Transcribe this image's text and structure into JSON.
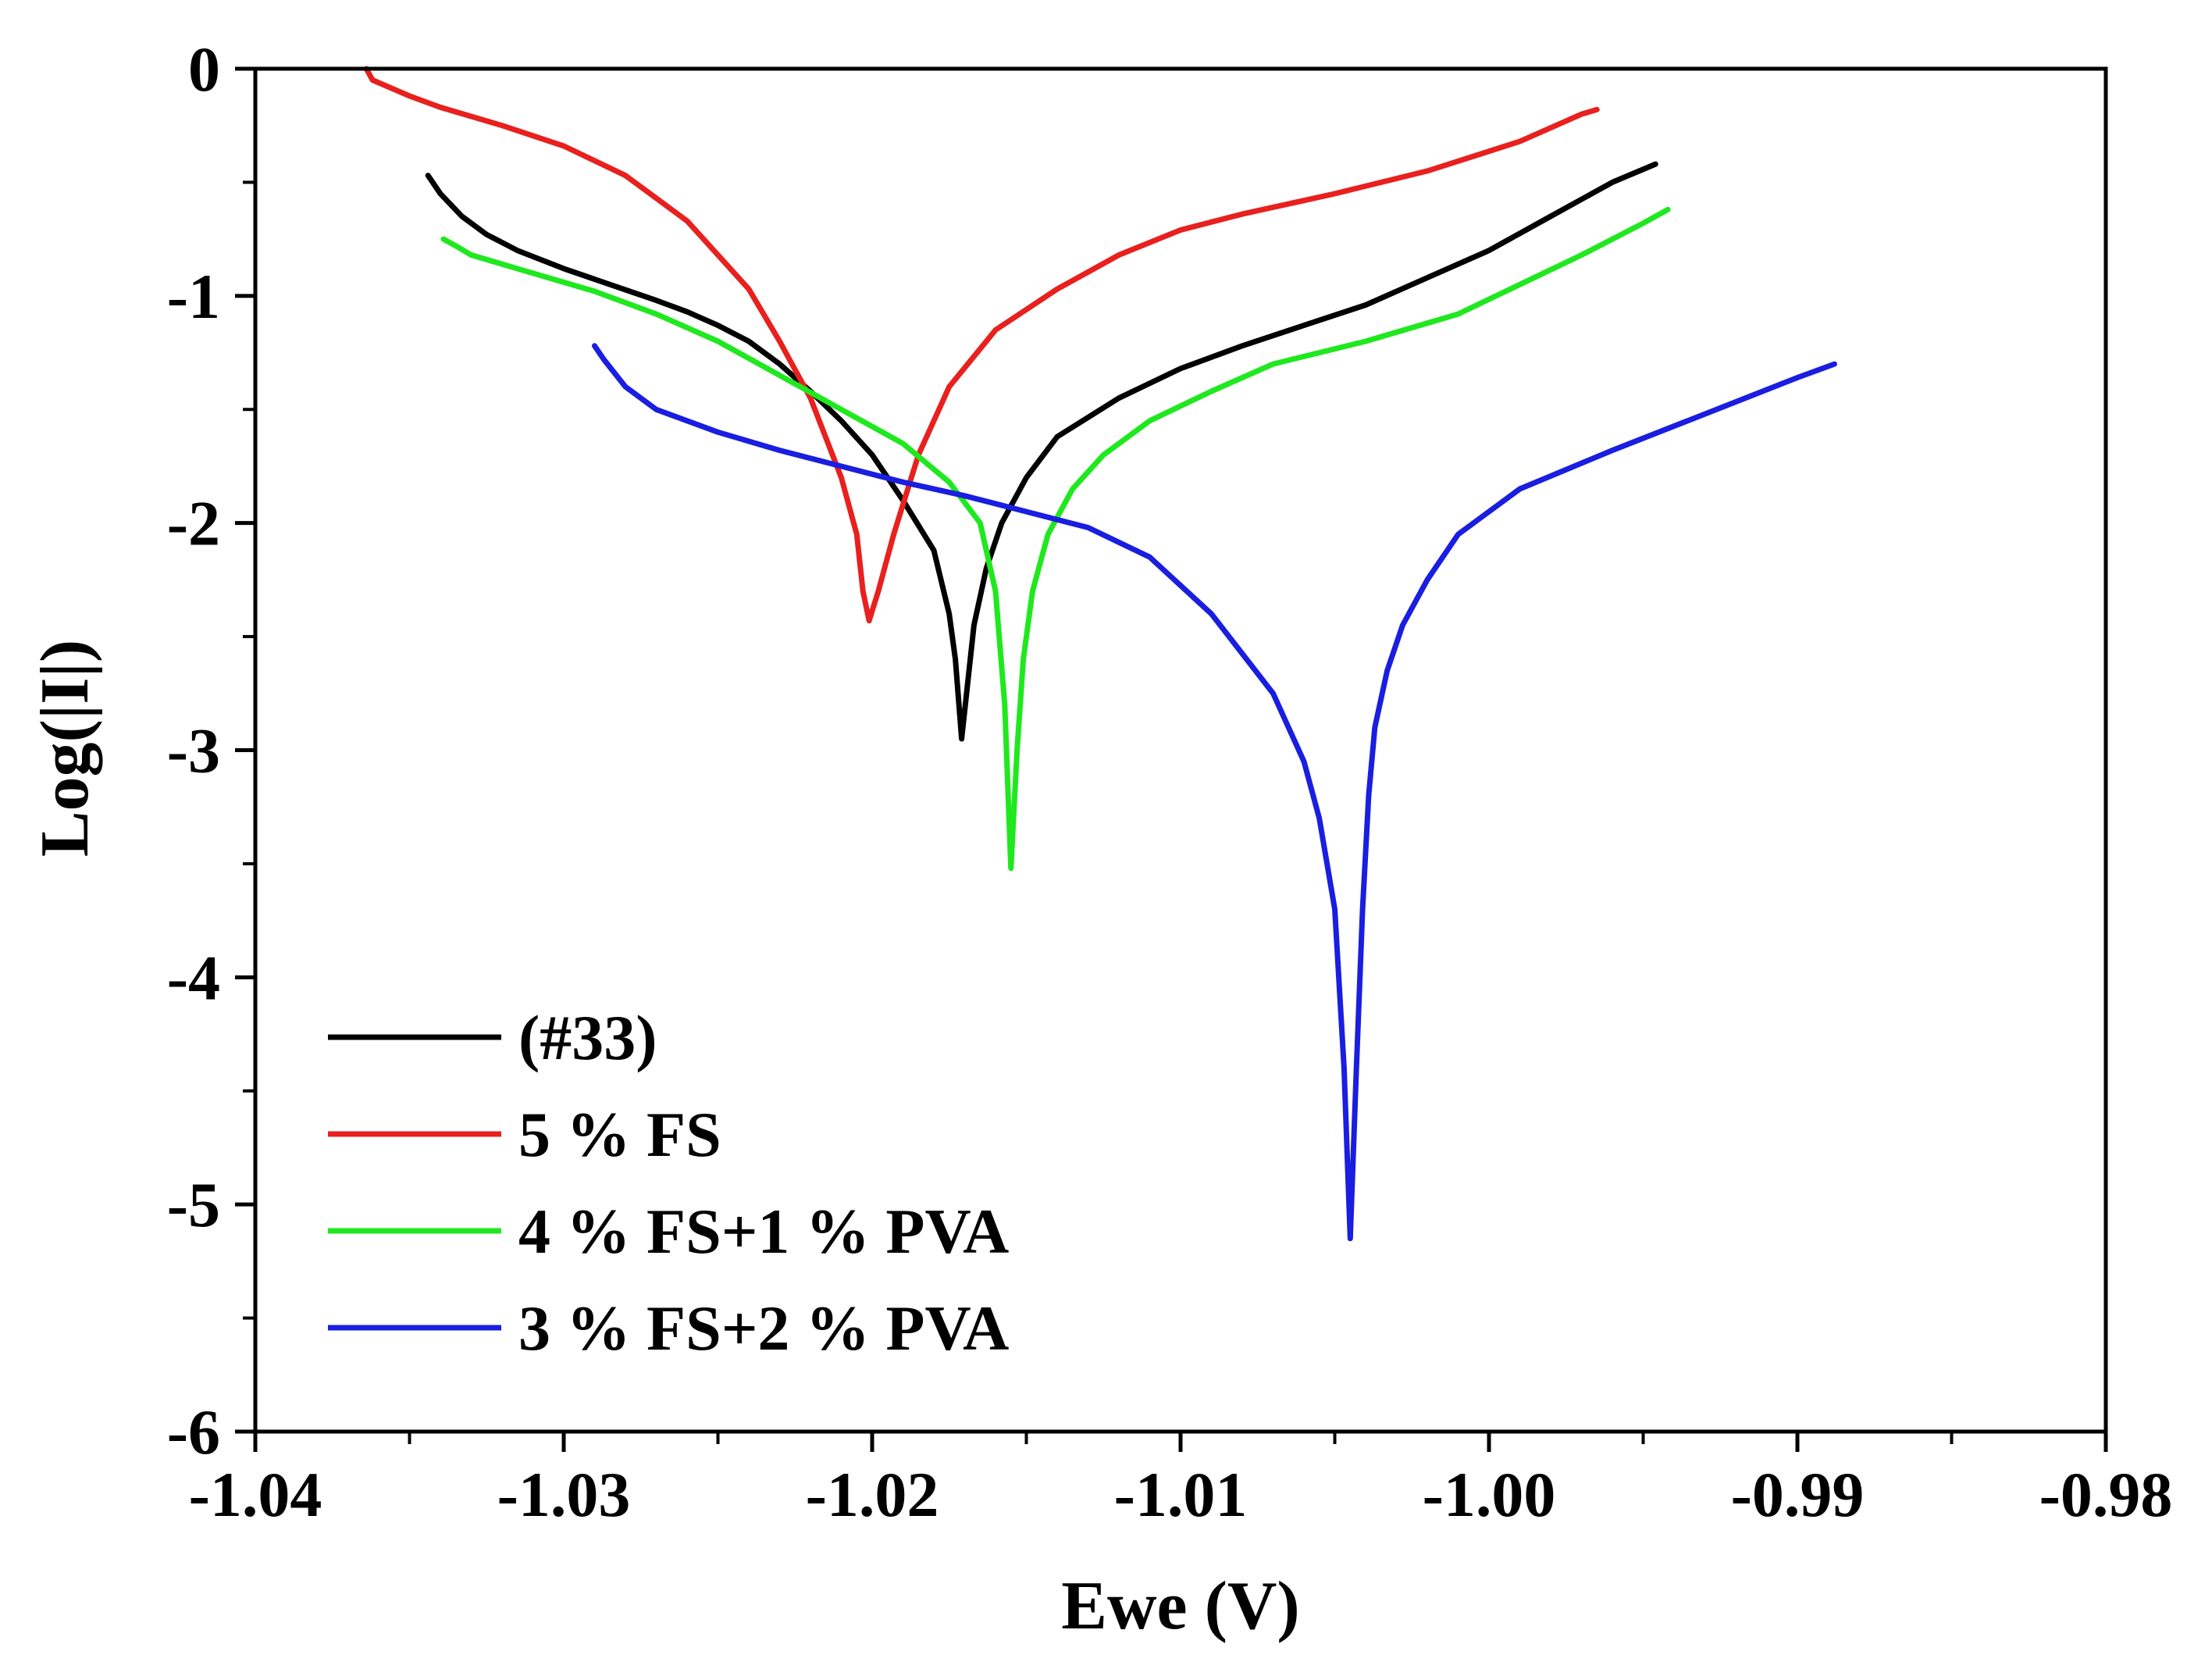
{
  "chart_data": {
    "type": "line",
    "title": "",
    "xlabel": "Ewe (V)",
    "ylabel": "Log(|I|)",
    "xlim": [
      -1.04,
      -0.98
    ],
    "ylim": [
      -6,
      0
    ],
    "x_ticks": [
      -1.04,
      -1.03,
      -1.02,
      -1.01,
      -1.0,
      -0.99,
      -0.98
    ],
    "x_tick_labels": [
      "-1.04",
      "-1.03",
      "-1.02",
      "-1.01",
      "-1.00",
      "-0.99",
      "-0.98"
    ],
    "y_ticks": [
      0,
      -1,
      -2,
      -3,
      -4,
      -5,
      -6
    ],
    "y_tick_labels": [
      "0",
      "-1",
      "-2",
      "-3",
      "-4",
      "-5",
      "-6"
    ],
    "grid": false,
    "legend_position": "bottom-left",
    "series": [
      {
        "name": "(#33)",
        "color": "#000000",
        "x": [
          -1.0344,
          -1.034,
          -1.0333,
          -1.0325,
          -1.0315,
          -1.03,
          -1.0285,
          -1.027,
          -1.026,
          -1.025,
          -1.024,
          -1.023,
          -1.022,
          -1.021,
          -1.02,
          -1.019,
          -1.018,
          -1.0175,
          -1.0173,
          -1.0171,
          -1.0169,
          -1.0167,
          -1.0163,
          -1.0158,
          -1.015,
          -1.014,
          -1.012,
          -1.01,
          -1.008,
          -1.006,
          -1.004,
          -1.002,
          -1.0,
          -0.998,
          -0.996,
          -0.9946
        ],
        "y": [
          -0.47,
          -0.55,
          -0.65,
          -0.73,
          -0.8,
          -0.88,
          -0.95,
          -1.02,
          -1.07,
          -1.13,
          -1.2,
          -1.3,
          -1.42,
          -1.55,
          -1.7,
          -1.9,
          -2.12,
          -2.4,
          -2.6,
          -2.95,
          -2.7,
          -2.45,
          -2.2,
          -2.0,
          -1.8,
          -1.62,
          -1.45,
          -1.32,
          -1.22,
          -1.13,
          -1.04,
          -0.92,
          -0.8,
          -0.65,
          -0.5,
          -0.42
        ]
      },
      {
        "name": "5 % FS",
        "color": "#e8201e",
        "x": [
          -1.0364,
          -1.0362,
          -1.035,
          -1.034,
          -1.032,
          -1.03,
          -1.028,
          -1.026,
          -1.024,
          -1.023,
          -1.022,
          -1.021,
          -1.0205,
          -1.0203,
          -1.0201,
          -1.0198,
          -1.0193,
          -1.0185,
          -1.0175,
          -1.016,
          -1.014,
          -1.012,
          -1.01,
          -1.008,
          -1.005,
          -1.002,
          -0.999,
          -0.997,
          -0.9965
        ],
        "y": [
          0.0,
          -0.05,
          -0.12,
          -0.17,
          -0.25,
          -0.34,
          -0.47,
          -0.67,
          -0.97,
          -1.2,
          -1.45,
          -1.8,
          -2.05,
          -2.3,
          -2.43,
          -2.3,
          -2.05,
          -1.7,
          -1.4,
          -1.15,
          -0.97,
          -0.82,
          -0.71,
          -0.64,
          -0.55,
          -0.45,
          -0.32,
          -0.2,
          -0.18
        ]
      },
      {
        "name": "4 % FS+1 % PVA",
        "color": "#1fe81f",
        "x": [
          -1.0339,
          -1.0335,
          -1.033,
          -1.031,
          -1.029,
          -1.027,
          -1.025,
          -1.023,
          -1.021,
          -1.019,
          -1.0175,
          -1.0165,
          -1.016,
          -1.0157,
          -1.0155,
          -1.0153,
          -1.0151,
          -1.0148,
          -1.0143,
          -1.0135,
          -1.0125,
          -1.011,
          -1.009,
          -1.007,
          -1.004,
          -1.001,
          -0.999,
          -0.997,
          -0.995,
          -0.9942
        ],
        "y": [
          -0.75,
          -0.78,
          -0.82,
          -0.9,
          -0.98,
          -1.08,
          -1.2,
          -1.35,
          -1.5,
          -1.65,
          -1.82,
          -2.0,
          -2.3,
          -2.8,
          -3.52,
          -3.0,
          -2.6,
          -2.3,
          -2.05,
          -1.85,
          -1.7,
          -1.55,
          -1.42,
          -1.3,
          -1.2,
          -1.08,
          -0.95,
          -0.82,
          -0.68,
          -0.62
        ]
      },
      {
        "name": "3 % FS+2 % PVA",
        "color": "#1a1ee0",
        "x": [
          -1.029,
          -1.0287,
          -1.028,
          -1.027,
          -1.025,
          -1.023,
          -1.021,
          -1.019,
          -1.017,
          -1.015,
          -1.013,
          -1.011,
          -1.009,
          -1.007,
          -1.006,
          -1.0055,
          -1.005,
          -1.0047,
          -1.0045,
          -1.0043,
          -1.0041,
          -1.0039,
          -1.0037,
          -1.0033,
          -1.0028,
          -1.002,
          -1.001,
          -0.999,
          -0.996,
          -0.993,
          -0.99,
          -0.9888
        ],
        "y": [
          -1.22,
          -1.28,
          -1.4,
          -1.5,
          -1.6,
          -1.68,
          -1.75,
          -1.82,
          -1.88,
          -1.95,
          -2.02,
          -2.15,
          -2.4,
          -2.75,
          -3.05,
          -3.3,
          -3.7,
          -4.4,
          -5.15,
          -4.4,
          -3.7,
          -3.2,
          -2.9,
          -2.65,
          -2.45,
          -2.25,
          -2.05,
          -1.85,
          -1.68,
          -1.52,
          -1.36,
          -1.3
        ]
      }
    ]
  }
}
